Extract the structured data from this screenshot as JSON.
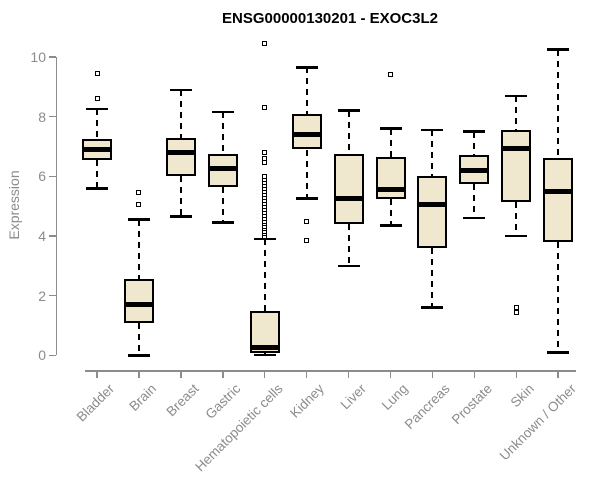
{
  "title": "ENSG00000130201 - EXOC3L2",
  "y_axis": {
    "label": "Expression",
    "ticks": [
      0,
      2,
      4,
      6,
      8,
      10
    ],
    "min": 0,
    "max": 10
  },
  "colors": {
    "box_fill": "#EFE8CE",
    "box_border": "#000000",
    "median": "#000000",
    "whisker": "#000000",
    "axis": "#8C8C8C",
    "tick_label": "#8C8C8C",
    "title": "#000000",
    "background": "#FFFFFF"
  },
  "chart_data": {
    "type": "box",
    "title": "ENSG00000130201 - EXOC3L2",
    "xlabel": "",
    "ylabel": "Expression",
    "ylim": [
      0,
      10
    ],
    "yticks": [
      0,
      2,
      4,
      6,
      8,
      10
    ],
    "grid": false,
    "legend": "none",
    "categories": [
      "Bladder",
      "Brain",
      "Breast",
      "Gastric",
      "Hematopoietic cells",
      "Kidney",
      "Liver",
      "Lung",
      "Pancreas",
      "Prostate",
      "Skin",
      "Unknown / Other"
    ],
    "series": [
      {
        "name": "Bladder",
        "whisker_low": 5.6,
        "q1": 6.55,
        "median": 6.9,
        "q3": 7.25,
        "whisker_high": 8.25,
        "outliers": [
          8.6,
          9.45
        ]
      },
      {
        "name": "Brain",
        "whisker_low": 0.0,
        "q1": 1.1,
        "median": 1.7,
        "q3": 2.55,
        "whisker_high": 4.55,
        "outliers": [
          5.05,
          5.45
        ]
      },
      {
        "name": "Breast",
        "whisker_low": 4.65,
        "q1": 6.0,
        "median": 6.8,
        "q3": 7.3,
        "whisker_high": 8.9,
        "outliers": []
      },
      {
        "name": "Gastric",
        "whisker_low": 4.45,
        "q1": 5.65,
        "median": 6.25,
        "q3": 6.75,
        "whisker_high": 8.15,
        "outliers": []
      },
      {
        "name": "Hematopoietic cells",
        "whisker_low": 0.02,
        "q1": 0.07,
        "median": 0.27,
        "q3": 1.5,
        "whisker_high": 3.9,
        "outliers": [
          4.0,
          4.08,
          4.16,
          4.25,
          4.33,
          4.42,
          4.5,
          4.6,
          4.7,
          4.8,
          4.9,
          5.0,
          5.1,
          5.2,
          5.3,
          5.4,
          5.5,
          5.6,
          5.7,
          5.8,
          5.9,
          6.0,
          6.45,
          6.6,
          6.8,
          8.3,
          10.45
        ]
      },
      {
        "name": "Kidney",
        "whisker_low": 5.25,
        "q1": 6.9,
        "median": 7.4,
        "q3": 8.1,
        "whisker_high": 9.65,
        "outliers": [
          4.5,
          3.85
        ]
      },
      {
        "name": "Liver",
        "whisker_low": 3.0,
        "q1": 4.4,
        "median": 5.25,
        "q3": 6.75,
        "whisker_high": 8.2,
        "outliers": []
      },
      {
        "name": "Lung",
        "whisker_low": 4.35,
        "q1": 5.25,
        "median": 5.55,
        "q3": 6.65,
        "whisker_high": 7.6,
        "outliers": [
          9.4
        ]
      },
      {
        "name": "Pancreas",
        "whisker_low": 1.6,
        "q1": 3.6,
        "median": 5.05,
        "q3": 6.0,
        "whisker_high": 7.55,
        "outliers": []
      },
      {
        "name": "Prostate",
        "whisker_low": 4.6,
        "q1": 5.75,
        "median": 6.2,
        "q3": 6.7,
        "whisker_high": 7.5,
        "outliers": []
      },
      {
        "name": "Skin",
        "whisker_low": 4.0,
        "q1": 5.15,
        "median": 6.95,
        "q3": 7.55,
        "whisker_high": 8.7,
        "outliers": [
          1.45,
          1.6
        ]
      },
      {
        "name": "Unknown / Other",
        "whisker_low": 0.1,
        "q1": 3.8,
        "median": 5.5,
        "q3": 6.6,
        "whisker_high": 10.25,
        "outliers": []
      }
    ]
  }
}
